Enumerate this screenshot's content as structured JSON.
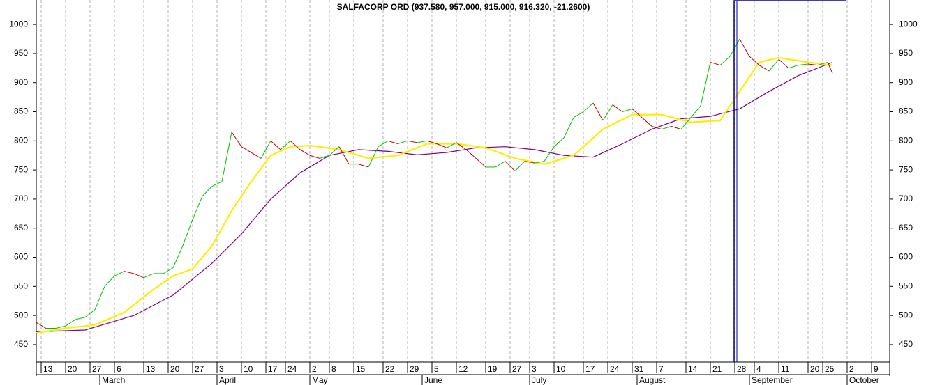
{
  "chart_data": {
    "type": "line",
    "title": "SALFACORP ORD (937.580, 957.000, 915.000, 916.320, -21.2600)",
    "xlim": [
      0,
      175
    ],
    "ylim": [
      420,
      1042
    ],
    "yticks": [
      450,
      500,
      550,
      600,
      650,
      700,
      750,
      800,
      850,
      900,
      950,
      1000
    ],
    "xticks": [
      {
        "value": 1,
        "label": "13"
      },
      {
        "value": 6,
        "label": "20"
      },
      {
        "value": 11,
        "label": "27"
      },
      {
        "value": 16,
        "label": "6"
      },
      {
        "value": 22,
        "label": "13"
      },
      {
        "value": 27,
        "label": "20"
      },
      {
        "value": 32,
        "label": "27"
      },
      {
        "value": 37,
        "label": "3"
      },
      {
        "value": 42,
        "label": "10"
      },
      {
        "value": 47,
        "label": "17"
      },
      {
        "value": 51,
        "label": "24"
      },
      {
        "value": 56,
        "label": "2"
      },
      {
        "value": 60,
        "label": "8"
      },
      {
        "value": 65,
        "label": "15"
      },
      {
        "value": 71,
        "label": "22"
      },
      {
        "value": 76,
        "label": "29"
      },
      {
        "value": 81,
        "label": "5"
      },
      {
        "value": 86,
        "label": "12"
      },
      {
        "value": 92,
        "label": "19"
      },
      {
        "value": 97,
        "label": "27"
      },
      {
        "value": 101,
        "label": "3"
      },
      {
        "value": 106,
        "label": "10"
      },
      {
        "value": 112,
        "label": "17"
      },
      {
        "value": 117,
        "label": "24"
      },
      {
        "value": 122,
        "label": "31"
      },
      {
        "value": 127,
        "label": "7"
      },
      {
        "value": 133,
        "label": "14"
      },
      {
        "value": 138,
        "label": "21"
      },
      {
        "value": 143,
        "label": "28"
      },
      {
        "value": 147,
        "label": "4"
      },
      {
        "value": 152,
        "label": "11"
      },
      {
        "value": 158,
        "label": "20"
      },
      {
        "value": 161,
        "label": "25"
      },
      {
        "value": 166,
        "label": "2"
      },
      {
        "value": 171,
        "label": "9"
      }
    ],
    "month_ticks": [
      {
        "value": 13,
        "label": "March"
      },
      {
        "value": 37,
        "label": "April"
      },
      {
        "value": 56,
        "label": "May"
      },
      {
        "value": 79,
        "label": "June"
      },
      {
        "value": 101,
        "label": "July"
      },
      {
        "value": 123,
        "label": "August"
      },
      {
        "value": 146,
        "label": "September"
      },
      {
        "value": 166,
        "label": "October"
      }
    ],
    "grid": true,
    "series": [
      {
        "up_color": "#00c000",
        "down_color": "#c00000",
        "x": [
          0,
          2,
          4,
          6,
          8,
          10,
          12,
          14,
          16,
          18,
          20,
          22,
          24,
          26,
          28,
          30,
          32,
          34,
          36,
          38,
          40,
          42,
          44,
          46,
          48,
          50,
          52,
          54,
          56,
          58,
          60,
          62,
          64,
          66,
          68,
          70,
          72,
          74,
          76,
          78,
          80,
          82,
          84,
          86,
          88,
          90,
          92,
          94,
          96,
          98,
          100,
          102,
          104,
          106,
          108,
          110,
          112,
          114,
          116,
          118,
          120,
          122,
          124,
          126,
          128,
          130,
          132,
          134,
          136,
          138,
          140,
          142,
          144,
          146,
          148,
          150,
          152,
          154,
          156,
          158,
          160,
          162,
          163
        ],
        "values": [
          488,
          478,
          478,
          482,
          493,
          497,
          510,
          550,
          568,
          576,
          572,
          565,
          572,
          572,
          582,
          620,
          665,
          705,
          722,
          730,
          815,
          790,
          780,
          770,
          800,
          785,
          800,
          785,
          775,
          770,
          775,
          790,
          760,
          760,
          755,
          790,
          800,
          795,
          800,
          797,
          800,
          795,
          788,
          797,
          785,
          770,
          755,
          755,
          765,
          748,
          765,
          762,
          765,
          790,
          805,
          840,
          850,
          865,
          835,
          862,
          850,
          855,
          840,
          825,
          820,
          825,
          820,
          840,
          860,
          935,
          930,
          945,
          975,
          945,
          930,
          920,
          940,
          925,
          930,
          932,
          930,
          935,
          916
        ]
      },
      {
        "color": "#ffee00",
        "x": [
          0,
          6,
          12,
          18,
          24,
          28,
          32,
          36,
          40,
          44,
          48,
          52,
          56,
          62,
          68,
          74,
          80,
          86,
          92,
          98,
          104,
          110,
          116,
          122,
          128,
          134,
          140,
          144,
          148,
          152,
          158,
          163
        ],
        "values": [
          470,
          478,
          484,
          505,
          545,
          568,
          580,
          620,
          680,
          730,
          775,
          790,
          792,
          785,
          770,
          775,
          795,
          795,
          788,
          770,
          760,
          775,
          820,
          845,
          845,
          832,
          835,
          885,
          935,
          943,
          935,
          930
        ]
      },
      {
        "color": "#800080",
        "x": [
          0,
          10,
          20,
          28,
          36,
          42,
          48,
          54,
          60,
          66,
          72,
          78,
          84,
          90,
          96,
          102,
          108,
          114,
          120,
          126,
          132,
          138,
          144,
          150,
          156,
          163
        ],
        "values": [
          472,
          475,
          500,
          535,
          590,
          640,
          700,
          745,
          775,
          785,
          782,
          776,
          780,
          788,
          790,
          785,
          775,
          772,
          795,
          820,
          838,
          842,
          855,
          885,
          912,
          935
        ]
      }
    ]
  }
}
